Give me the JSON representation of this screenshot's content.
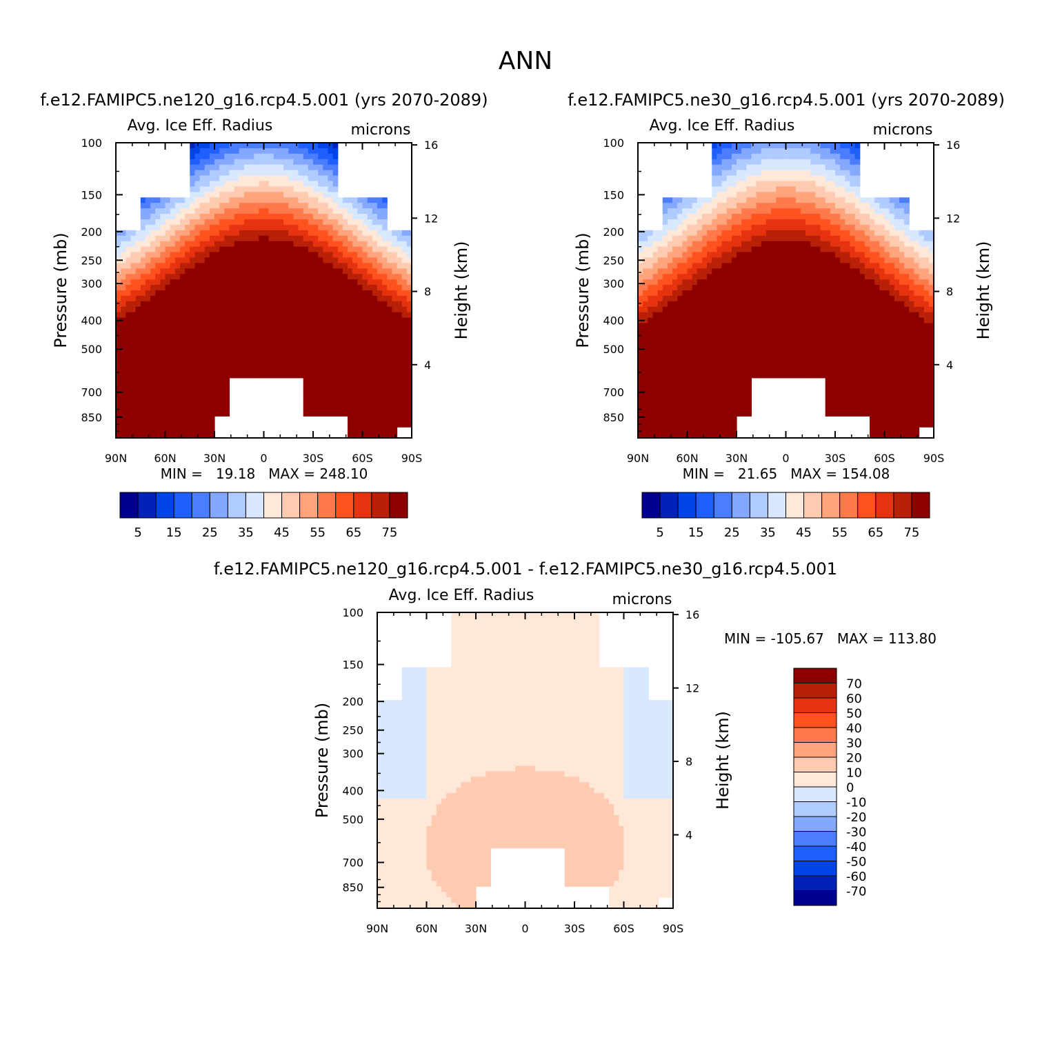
{
  "page_title": "ANN",
  "colors": {
    "abs_palette": [
      "#00008c",
      "#0022b8",
      "#0044e6",
      "#1f5fff",
      "#4a7dff",
      "#85a8ff",
      "#b0cbff",
      "#d8e8ff",
      "#ffe8d8",
      "#ffcbb0",
      "#ffa47c",
      "#ff7a4a",
      "#ff521f",
      "#e6330f",
      "#b82108",
      "#8c0000"
    ],
    "diff_palette": [
      "#00008c",
      "#0022b8",
      "#0044e6",
      "#1f5fff",
      "#4a7dff",
      "#85a8ff",
      "#b0cbff",
      "#d8e8ff",
      "#ffe8d8",
      "#ffcbb0",
      "#ffa47c",
      "#ff7a4a",
      "#ff521f",
      "#e6330f",
      "#b82108",
      "#8c0000"
    ]
  },
  "panels": [
    {
      "case": "f.e12.FAMIPC5.ne120_g16.rcp4.5.001 (yrs 2070-2089)",
      "variable": "Avg. Ice Eff. Radius",
      "units": "microns",
      "ylabel_left": "Pressure (mb)",
      "ylabel_right": "Height (km)",
      "stats": "MIN =   19.18   MAX = 248.10",
      "pressure_ticks": [
        "100",
        "150",
        "200",
        "250",
        "300",
        "400",
        "500",
        "700",
        "850"
      ],
      "height_ticks": [
        "16",
        "12",
        "8",
        "4"
      ],
      "lat_ticks": [
        "90N",
        "60N",
        "30N",
        "0",
        "30S",
        "60S",
        "90S"
      ],
      "colorbar_labels": [
        "5",
        "15",
        "25",
        "35",
        "45",
        "55",
        "65",
        "75"
      ]
    },
    {
      "case": "f.e12.FAMIPC5.ne30_g16.rcp4.5.001 (yrs 2070-2089)",
      "variable": "Avg. Ice Eff. Radius",
      "units": "microns",
      "ylabel_left": "Pressure (mb)",
      "ylabel_right": "Height (km)",
      "stats": "MIN =   21.65   MAX = 154.08",
      "pressure_ticks": [
        "100",
        "150",
        "200",
        "250",
        "300",
        "400",
        "500",
        "700",
        "850"
      ],
      "height_ticks": [
        "16",
        "12",
        "8",
        "4"
      ],
      "lat_ticks": [
        "90N",
        "60N",
        "30N",
        "0",
        "30S",
        "60S",
        "90S"
      ],
      "colorbar_labels": [
        "5",
        "15",
        "25",
        "35",
        "45",
        "55",
        "65",
        "75"
      ]
    },
    {
      "case": "f.e12.FAMIPC5.ne120_g16.rcp4.5.001 - f.e12.FAMIPC5.ne30_g16.rcp4.5.001",
      "variable": "Avg. Ice Eff. Radius",
      "units": "microns",
      "ylabel_left": "Pressure (mb)",
      "ylabel_right": "Height (km)",
      "stats": "MIN = -105.67   MAX = 113.80",
      "pressure_ticks": [
        "100",
        "150",
        "200",
        "250",
        "300",
        "400",
        "500",
        "700",
        "850"
      ],
      "height_ticks": [
        "16",
        "12",
        "8",
        "4"
      ],
      "lat_ticks": [
        "90N",
        "60N",
        "30N",
        "0",
        "30S",
        "60S",
        "90S"
      ],
      "colorbar_labels": [
        "70",
        "60",
        "50",
        "40",
        "30",
        "20",
        "10",
        "0",
        "-10",
        "-20",
        "-30",
        "-40",
        "-50",
        "-60",
        "-70"
      ]
    }
  ],
  "chart_data": [
    {
      "type": "heatmap",
      "title": "f.e12.FAMIPC5.ne120_g16.rcp4.5.001 (yrs 2070-2089)",
      "subtitle": "Avg. Ice Eff. Radius",
      "xlabel": "",
      "ylabel": "Pressure (mb)",
      "units": "microns",
      "x_range": [
        90,
        -90
      ],
      "y_range_mb": [
        1000,
        100
      ],
      "min": 19.18,
      "max": 248.1,
      "contour_levels": [
        5,
        10,
        15,
        20,
        25,
        30,
        35,
        40,
        45,
        50,
        55,
        60,
        65,
        70,
        75
      ]
    },
    {
      "type": "heatmap",
      "title": "f.e12.FAMIPC5.ne30_g16.rcp4.5.001 (yrs 2070-2089)",
      "subtitle": "Avg. Ice Eff. Radius",
      "xlabel": "",
      "ylabel": "Pressure (mb)",
      "units": "microns",
      "x_range": [
        90,
        -90
      ],
      "y_range_mb": [
        1000,
        100
      ],
      "min": 21.65,
      "max": 154.08,
      "contour_levels": [
        5,
        10,
        15,
        20,
        25,
        30,
        35,
        40,
        45,
        50,
        55,
        60,
        65,
        70,
        75
      ]
    },
    {
      "type": "heatmap",
      "title": "f.e12.FAMIPC5.ne120_g16.rcp4.5.001 - f.e12.FAMIPC5.ne30_g16.rcp4.5.001",
      "subtitle": "Avg. Ice Eff. Radius",
      "xlabel": "",
      "ylabel": "Pressure (mb)",
      "units": "microns",
      "x_range": [
        90,
        -90
      ],
      "y_range_mb": [
        1000,
        100
      ],
      "min": -105.67,
      "max": 113.8,
      "contour_levels": [
        -70,
        -60,
        -50,
        -40,
        -30,
        -20,
        -10,
        0,
        10,
        20,
        30,
        40,
        50,
        60,
        70
      ]
    }
  ]
}
